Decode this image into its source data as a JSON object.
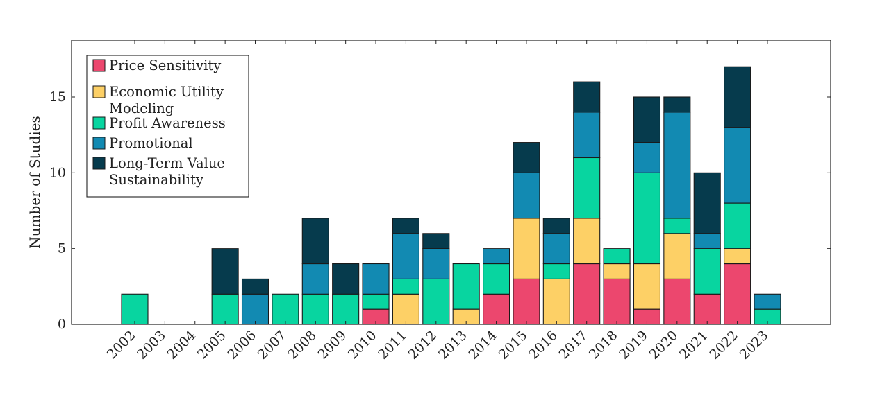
{
  "chart_data": {
    "type": "bar",
    "stacked": true,
    "title": "",
    "xlabel": "",
    "ylabel": "Number of Studies",
    "ylim": [
      0,
      18.7
    ],
    "yticks": [
      0,
      5,
      10,
      15
    ],
    "grid": false,
    "legend_position": "top-left",
    "categories": [
      "2002",
      "2003",
      "2004",
      "2005",
      "2006",
      "2007",
      "2008",
      "2009",
      "2010",
      "2011",
      "2012",
      "2013",
      "2014",
      "2015",
      "2016",
      "2017",
      "2018",
      "2019",
      "2020",
      "2021",
      "2022",
      "2023"
    ],
    "series": [
      {
        "name": "Price Sensitivity",
        "color": "#EC476E",
        "values": [
          0,
          0,
          0,
          0,
          0,
          0,
          0,
          0,
          1,
          0,
          0,
          0,
          2,
          3,
          0,
          4,
          3,
          1,
          3,
          2,
          4,
          0
        ]
      },
      {
        "name": "Economic Utility Modeling",
        "legend_lines": [
          "Economic Utility",
          "Modeling"
        ],
        "color": "#FDD066",
        "values": [
          0,
          0,
          0,
          0,
          0,
          0,
          0,
          0,
          0,
          2,
          0,
          1,
          0,
          4,
          3,
          3,
          1,
          3,
          3,
          0,
          1,
          0
        ]
      },
      {
        "name": "Profit Awareness",
        "color": "#08D5A0",
        "values": [
          2,
          0,
          0,
          2,
          0,
          2,
          2,
          2,
          1,
          1,
          3,
          3,
          2,
          0,
          1,
          4,
          1,
          6,
          1,
          3,
          3,
          1
        ]
      },
      {
        "name": "Promotional",
        "color": "#128AB2",
        "values": [
          0,
          0,
          0,
          0,
          2,
          0,
          2,
          0,
          2,
          3,
          2,
          0,
          1,
          3,
          2,
          3,
          0,
          2,
          7,
          1,
          5,
          1
        ]
      },
      {
        "name": "Long-Term Value Sustainability",
        "legend_lines": [
          "Long-Term Value",
          "Sustainability"
        ],
        "color": "#063B4D",
        "values": [
          0,
          0,
          0,
          3,
          1,
          0,
          3,
          2,
          0,
          1,
          1,
          0,
          0,
          2,
          1,
          2,
          0,
          3,
          1,
          4,
          4,
          0
        ]
      }
    ]
  }
}
